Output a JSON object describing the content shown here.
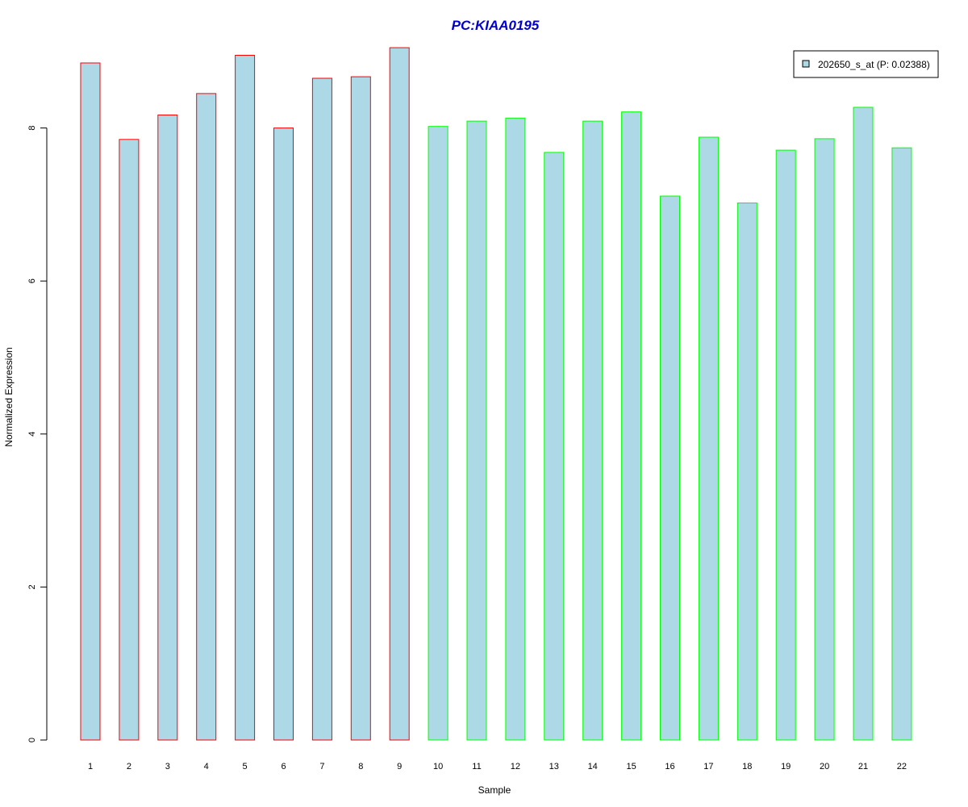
{
  "chart_data": {
    "type": "bar",
    "title": "PC:KIAA0195",
    "xlabel": "Sample",
    "ylabel": "Normalized Expression",
    "categories": [
      "1",
      "2",
      "3",
      "4",
      "5",
      "6",
      "7",
      "8",
      "9",
      "10",
      "11",
      "12",
      "13",
      "14",
      "15",
      "16",
      "17",
      "18",
      "19",
      "20",
      "21",
      "22"
    ],
    "values": [
      8.85,
      7.85,
      8.17,
      8.45,
      8.95,
      8.0,
      8.65,
      8.67,
      9.05,
      8.02,
      8.09,
      8.13,
      7.68,
      8.09,
      8.21,
      7.11,
      7.88,
      7.02,
      7.71,
      7.86,
      8.27,
      7.74
    ],
    "series": [
      {
        "name": "202650_s_at (P: 0.02388)",
        "values": [
          8.85,
          7.85,
          8.17,
          8.45,
          8.95,
          8.0,
          8.65,
          8.67,
          9.05,
          8.02,
          8.09,
          8.13,
          7.68,
          8.09,
          8.21,
          7.11,
          7.88,
          7.02,
          7.71,
          7.86,
          8.27,
          7.74
        ]
      }
    ],
    "group_of_sample": [
      "1",
      "1",
      "1",
      "1",
      "1",
      "1",
      "1",
      "1",
      "1",
      "2",
      "2",
      "2",
      "2",
      "2",
      "2",
      "2",
      "2",
      "2",
      "2",
      "2",
      "2",
      "2"
    ],
    "ylim": [
      0,
      9.05
    ],
    "yticks": [
      0,
      2,
      4,
      6,
      8
    ],
    "grid": false,
    "legend_position": "top-right",
    "colors": {
      "bar_fill": "#add8e6",
      "border_group_1": "#ff0000",
      "border_group_2": "#00ff00",
      "title": "#0000cd",
      "axis": "#000000"
    }
  }
}
